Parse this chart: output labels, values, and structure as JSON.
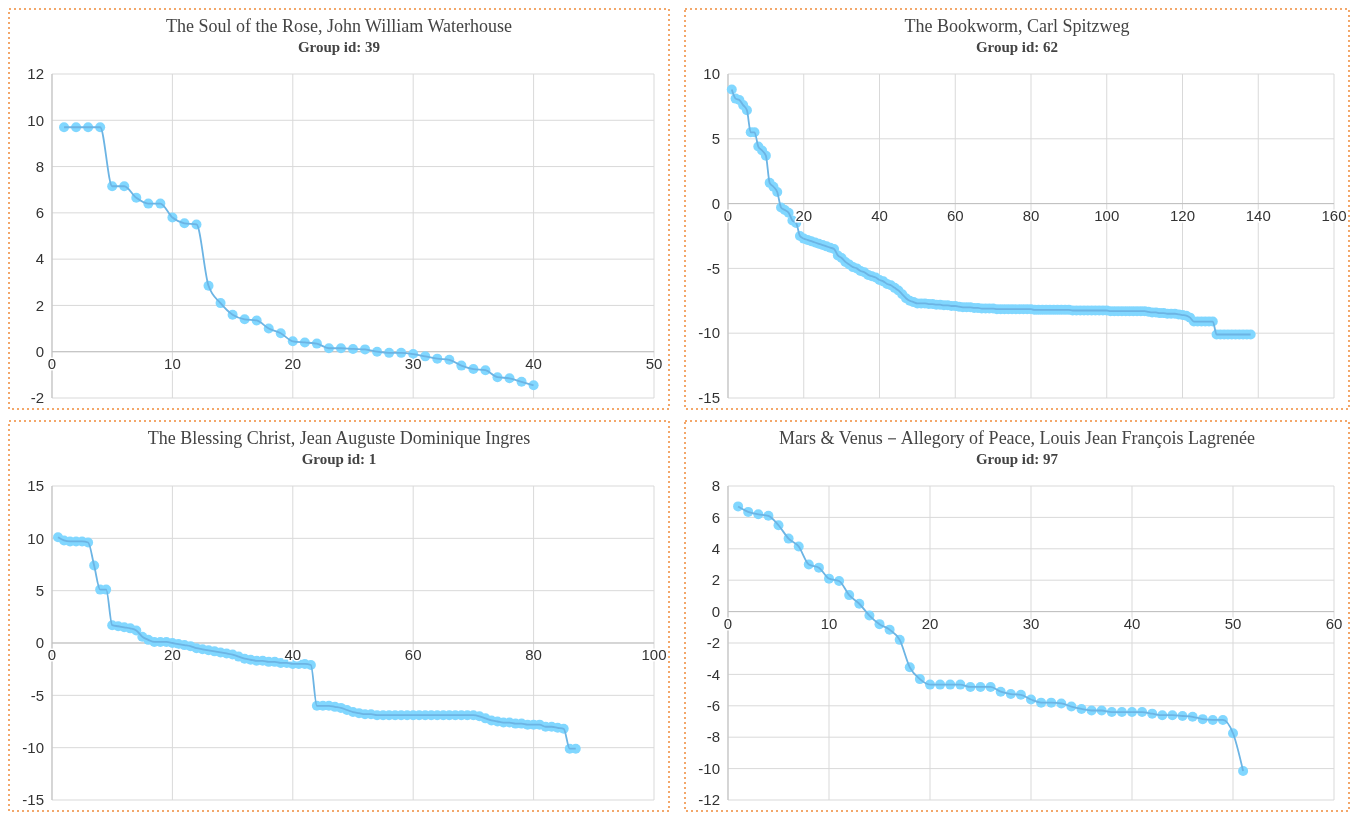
{
  "chart_data": [
    {
      "type": "line",
      "title": "The Soul of the Rose, John William Waterhouse",
      "subtitle": "Group id: 39",
      "marker": "circle",
      "grid": true,
      "x": [
        1,
        2,
        3,
        4,
        5,
        6,
        7,
        8,
        9,
        10,
        11,
        12,
        13,
        14,
        15,
        16,
        17,
        18,
        19,
        20,
        21,
        22,
        23,
        24,
        25,
        26,
        27,
        28,
        29,
        30,
        31,
        32,
        33,
        34,
        35,
        36,
        37,
        38,
        39,
        40
      ],
      "series": [
        {
          "color": "#6cb4e4",
          "values": [
            9.7,
            9.7,
            9.7,
            9.7,
            7.15,
            7.15,
            6.65,
            6.4,
            6.4,
            5.8,
            5.55,
            5.5,
            2.85,
            2.1,
            1.6,
            1.4,
            1.35,
            1.0,
            0.8,
            0.45,
            0.4,
            0.35,
            0.15,
            0.15,
            0.12,
            0.1,
            0,
            -0.05,
            -0.05,
            -0.1,
            -0.2,
            -0.3,
            -0.35,
            -0.6,
            -0.75,
            -0.8,
            -1.1,
            -1.15,
            -1.3,
            -1.45
          ]
        }
      ],
      "xlim": [
        0,
        50
      ],
      "xticks": [
        0,
        10,
        20,
        30,
        40,
        50
      ],
      "ylim": [
        -2,
        12
      ],
      "yticks": [
        -2,
        0,
        2,
        4,
        6,
        8,
        10,
        12
      ]
    },
    {
      "type": "line",
      "title": "The Bookworm, Carl Spitzweg",
      "subtitle": "Group id: 62",
      "marker": "circle",
      "grid": true,
      "x": [
        1,
        2,
        3,
        4,
        5,
        6,
        7,
        8,
        9,
        10,
        11,
        12,
        13,
        14,
        15,
        16,
        17,
        18,
        19,
        20,
        21,
        22,
        23,
        24,
        25,
        26,
        27,
        28,
        29,
        30,
        31,
        32,
        33,
        34,
        35,
        36,
        37,
        38,
        39,
        40,
        41,
        42,
        43,
        44,
        45,
        46,
        47,
        48,
        49,
        50,
        51,
        52,
        53,
        54,
        55,
        56,
        57,
        58,
        59,
        60,
        61,
        62,
        63,
        64,
        65,
        66,
        67,
        68,
        69,
        70,
        71,
        72,
        73,
        74,
        75,
        76,
        77,
        78,
        79,
        80,
        81,
        82,
        83,
        84,
        85,
        86,
        87,
        88,
        89,
        90,
        91,
        92,
        93,
        94,
        95,
        96,
        97,
        98,
        99,
        100,
        101,
        102,
        103,
        104,
        105,
        106,
        107,
        108,
        109,
        110,
        111,
        112,
        113,
        114,
        115,
        116,
        117,
        118,
        119,
        120,
        121,
        122,
        123,
        124,
        125,
        126,
        127,
        128,
        129,
        130,
        131,
        132,
        133,
        134,
        135,
        136,
        137,
        138
      ],
      "series": [
        {
          "color": "#6cb4e4",
          "values": [
            8.8,
            8.1,
            8.0,
            7.6,
            7.2,
            5.5,
            5.5,
            4.4,
            4.1,
            3.7,
            1.6,
            1.3,
            0.9,
            -0.3,
            -0.5,
            -0.7,
            -1.3,
            -1.5,
            -2.5,
            -2.7,
            -2.8,
            -2.9,
            -3.0,
            -3.1,
            -3.2,
            -3.3,
            -3.4,
            -3.5,
            -4.0,
            -4.2,
            -4.5,
            -4.7,
            -4.9,
            -5.0,
            -5.2,
            -5.3,
            -5.5,
            -5.6,
            -5.7,
            -5.9,
            -6.0,
            -6.2,
            -6.3,
            -6.5,
            -6.7,
            -7.0,
            -7.3,
            -7.5,
            -7.6,
            -7.7,
            -7.7,
            -7.7,
            -7.75,
            -7.75,
            -7.8,
            -7.8,
            -7.85,
            -7.85,
            -7.9,
            -7.9,
            -7.95,
            -8.0,
            -8.0,
            -8.0,
            -8.05,
            -8.05,
            -8.1,
            -8.1,
            -8.1,
            -8.1,
            -8.15,
            -8.15,
            -8.15,
            -8.15,
            -8.15,
            -8.15,
            -8.15,
            -8.15,
            -8.15,
            -8.15,
            -8.2,
            -8.2,
            -8.2,
            -8.2,
            -8.2,
            -8.2,
            -8.2,
            -8.2,
            -8.2,
            -8.2,
            -8.25,
            -8.25,
            -8.25,
            -8.25,
            -8.25,
            -8.25,
            -8.25,
            -8.25,
            -8.25,
            -8.25,
            -8.3,
            -8.3,
            -8.3,
            -8.3,
            -8.3,
            -8.3,
            -8.3,
            -8.3,
            -8.3,
            -8.3,
            -8.35,
            -8.4,
            -8.4,
            -8.45,
            -8.45,
            -8.5,
            -8.5,
            -8.5,
            -8.55,
            -8.6,
            -8.65,
            -8.8,
            -9.1,
            -9.1,
            -9.1,
            -9.1,
            -9.1,
            -9.1,
            -10.1,
            -10.1,
            -10.1,
            -10.1,
            -10.1,
            -10.1,
            -10.1,
            -10.1,
            -10.1,
            -10.1
          ]
        }
      ],
      "xlim": [
        0,
        160
      ],
      "xticks": [
        0,
        20,
        40,
        60,
        80,
        100,
        120,
        140,
        160
      ],
      "ylim": [
        -15,
        10
      ],
      "yticks": [
        -15,
        -10,
        -5,
        0,
        5,
        10
      ]
    },
    {
      "type": "line",
      "title": "The Blessing Christ, Jean Auguste Dominique Ingres",
      "subtitle": "Group id: 1",
      "marker": "circle",
      "grid": true,
      "x": [
        1,
        2,
        3,
        4,
        5,
        6,
        7,
        8,
        9,
        10,
        11,
        12,
        13,
        14,
        15,
        16,
        17,
        18,
        19,
        20,
        21,
        22,
        23,
        24,
        25,
        26,
        27,
        28,
        29,
        30,
        31,
        32,
        33,
        34,
        35,
        36,
        37,
        38,
        39,
        40,
        41,
        42,
        43,
        44,
        45,
        46,
        47,
        48,
        49,
        50,
        51,
        52,
        53,
        54,
        55,
        56,
        57,
        58,
        59,
        60,
        61,
        62,
        63,
        64,
        65,
        66,
        67,
        68,
        69,
        70,
        71,
        72,
        73,
        74,
        75,
        76,
        77,
        78,
        79,
        80,
        81,
        82,
        83,
        84,
        85,
        86,
        87
      ],
      "series": [
        {
          "color": "#6cb4e4",
          "values": [
            10.1,
            9.8,
            9.7,
            9.7,
            9.7,
            9.6,
            7.4,
            5.1,
            5.1,
            1.7,
            1.6,
            1.5,
            1.4,
            1.2,
            0.6,
            0.3,
            0.1,
            0.1,
            0.1,
            0,
            -0.1,
            -0.2,
            -0.3,
            -0.5,
            -0.6,
            -0.7,
            -0.8,
            -0.9,
            -1.0,
            -1.1,
            -1.3,
            -1.5,
            -1.6,
            -1.7,
            -1.7,
            -1.8,
            -1.8,
            -1.9,
            -1.9,
            -2.0,
            -2.0,
            -2.0,
            -2.1,
            -6.0,
            -6.0,
            -6.0,
            -6.1,
            -6.2,
            -6.4,
            -6.6,
            -6.7,
            -6.8,
            -6.8,
            -6.9,
            -6.9,
            -6.9,
            -6.9,
            -6.9,
            -6.9,
            -6.9,
            -6.9,
            -6.9,
            -6.9,
            -6.9,
            -6.9,
            -6.9,
            -6.9,
            -6.9,
            -6.9,
            -6.9,
            -7.0,
            -7.2,
            -7.4,
            -7.5,
            -7.6,
            -7.6,
            -7.7,
            -7.7,
            -7.8,
            -7.8,
            -7.8,
            -8.0,
            -8.0,
            -8.1,
            -8.2,
            -10.1,
            -10.1
          ]
        }
      ],
      "xlim": [
        0,
        100
      ],
      "xticks": [
        0,
        20,
        40,
        60,
        80,
        100
      ],
      "ylim": [
        -15,
        15
      ],
      "yticks": [
        -15,
        -10,
        -5,
        0,
        5,
        10,
        15
      ]
    },
    {
      "type": "line",
      "title": "Mars & Venus－Allegory of Peace, Louis Jean François Lagrenée",
      "subtitle": "Group id: 97",
      "marker": "circle",
      "grid": true,
      "x": [
        1,
        2,
        3,
        4,
        5,
        6,
        7,
        8,
        9,
        10,
        11,
        12,
        13,
        14,
        15,
        16,
        17,
        18,
        19,
        20,
        21,
        22,
        23,
        24,
        25,
        26,
        27,
        28,
        29,
        30,
        31,
        32,
        33,
        34,
        35,
        36,
        37,
        38,
        39,
        40,
        41,
        42,
        43,
        44,
        45,
        46,
        47,
        48,
        49,
        50,
        51
      ],
      "series": [
        {
          "color": "#6cb4e4",
          "values": [
            6.7,
            6.35,
            6.2,
            6.1,
            5.5,
            4.65,
            4.15,
            3.0,
            2.8,
            2.1,
            1.95,
            1.05,
            0.5,
            -0.25,
            -0.8,
            -1.15,
            -1.8,
            -3.55,
            -4.3,
            -4.65,
            -4.65,
            -4.65,
            -4.65,
            -4.8,
            -4.8,
            -4.8,
            -5.1,
            -5.25,
            -5.3,
            -5.6,
            -5.8,
            -5.8,
            -5.85,
            -6.05,
            -6.2,
            -6.3,
            -6.3,
            -6.4,
            -6.4,
            -6.4,
            -6.4,
            -6.5,
            -6.6,
            -6.6,
            -6.65,
            -6.7,
            -6.85,
            -6.9,
            -6.9,
            -7.75,
            -10.15
          ]
        }
      ],
      "xlim": [
        0,
        60
      ],
      "xticks": [
        0,
        10,
        20,
        30,
        40,
        50,
        60
      ],
      "ylim": [
        -12,
        8
      ],
      "yticks": [
        -12,
        -10,
        -8,
        -6,
        -4,
        -2,
        0,
        2,
        4,
        6,
        8
      ]
    }
  ]
}
